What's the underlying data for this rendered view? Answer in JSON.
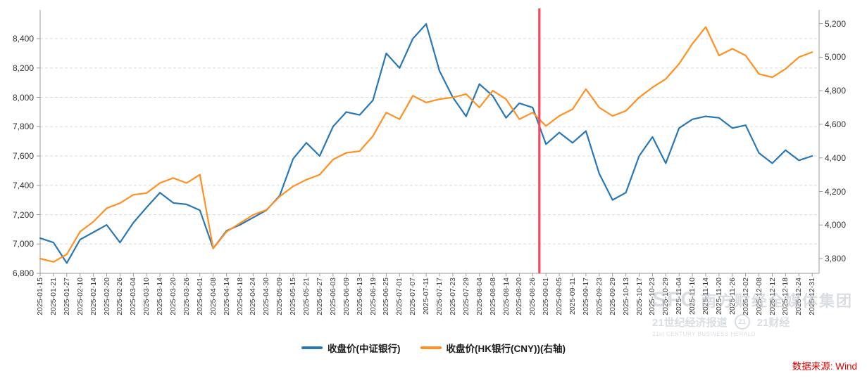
{
  "chart_data": {
    "type": "line",
    "title": "",
    "x_tick_labels": [
      "2025-01-15",
      "2025-01-21",
      "2025-01-27",
      "2025-02-10",
      "2025-02-14",
      "2025-02-20",
      "2025-02-26",
      "2025-03-04",
      "2025-03-10",
      "2025-03-14",
      "2025-03-20",
      "2025-03-26",
      "2025-04-01",
      "2025-04-08",
      "2025-04-14",
      "2025-04-18",
      "2025-04-24",
      "2025-04-30",
      "2025-05-09",
      "2025-05-15",
      "2025-05-21",
      "2025-05-27",
      "2025-06-03",
      "2025-06-09",
      "2025-06-13",
      "2025-06-19",
      "2025-06-25",
      "2025-07-01",
      "2025-07-07",
      "2025-07-11",
      "2025-07-17",
      "2025-07-23",
      "2025-07-29",
      "2025-08-04",
      "2025-08-08",
      "2025-08-14",
      "2025-08-20",
      "2025-08-26",
      "2025-09-01",
      "2025-09-05",
      "2025-09-11",
      "2025-09-17",
      "2025-09-23",
      "2025-09-29",
      "2025-10-13",
      "2025-10-17",
      "2025-10-23",
      "2025-10-29",
      "2025-11-04",
      "2025-11-10",
      "2025-11-14",
      "2025-11-20",
      "2025-11-26",
      "2025-12-02",
      "2025-12-08",
      "2025-12-12",
      "2025-12-18",
      "2025-12-24",
      "2025-12-31"
    ],
    "series": [
      {
        "name": "收盘价(中证银行)",
        "axis": "left",
        "color": "#2878b5",
        "values": [
          7040,
          7010,
          6870,
          7030,
          7080,
          7130,
          7010,
          7145,
          7250,
          7350,
          7280,
          7270,
          7230,
          6970,
          7090,
          7130,
          7180,
          7230,
          7330,
          7580,
          7690,
          7600,
          7800,
          7900,
          7880,
          7980,
          8300,
          8200,
          8400,
          8500,
          8180,
          8000,
          7870,
          8090,
          8010,
          7860,
          7960,
          7930,
          7680,
          7760,
          7690,
          7770,
          7480,
          7300,
          7350,
          7600,
          7730,
          7550,
          7790,
          7850,
          7870,
          7860,
          7790,
          7810,
          7620,
          7550,
          7640,
          7570,
          7600
        ]
      },
      {
        "name": "收盘价(HK银行(CNY))(右轴)",
        "axis": "right",
        "color": "#ff9021",
        "values": [
          3800,
          3780,
          3825,
          3960,
          4020,
          4100,
          4130,
          4180,
          4190,
          4250,
          4280,
          4250,
          4300,
          3860,
          3960,
          4010,
          4060,
          4090,
          4170,
          4230,
          4270,
          4300,
          4390,
          4430,
          4440,
          4530,
          4670,
          4630,
          4770,
          4730,
          4750,
          4760,
          4780,
          4700,
          4800,
          4750,
          4630,
          4670,
          4590,
          4650,
          4690,
          4810,
          4700,
          4650,
          4680,
          4760,
          4820,
          4870,
          4960,
          5080,
          5180,
          5010,
          5050,
          5010,
          4900,
          4880,
          4930,
          5000,
          5030
        ]
      }
    ],
    "left_axis": {
      "min": 6800,
      "max": 8400,
      "tick_interval": 200,
      "tick_values": [
        6800,
        7000,
        7200,
        7400,
        7600,
        7800,
        8000,
        8200,
        8400
      ],
      "tick_labels": [
        "6,800",
        "7,000",
        "7,200",
        "7,400",
        "7,600",
        "7,800",
        "8,000",
        "8,200",
        "8,400"
      ]
    },
    "right_axis": {
      "min": 3800,
      "max": 5200,
      "tick_interval": 200,
      "tick_values": [
        3800,
        4000,
        4200,
        4400,
        4600,
        4800,
        5000,
        5200
      ],
      "tick_labels": [
        "3,800",
        "4,000",
        "4,200",
        "4,400",
        "4,600",
        "4,800",
        "5,000",
        "5,200"
      ]
    },
    "marker_line": {
      "color": "#f8485e",
      "x_index": 37.5,
      "between": [
        "2025-08-26",
        "2025-09-01"
      ]
    },
    "grid": "horizontal-dashed",
    "legend_position": "bottom-center"
  },
  "legend": {
    "items": [
      {
        "label": "收盘价(中证银行)",
        "color": "#2878b5"
      },
      {
        "label": "收盘价(HK银行(CNY))(右轴)",
        "color": "#ff9021"
      }
    ]
  },
  "source_note": {
    "text": "数据来源: Wind",
    "color": "#e60000"
  },
  "watermark": {
    "brand_abbr": "SFC",
    "brand_cn": "南方财经全媒体集团",
    "sub_brand_1": "21世纪经济报道",
    "sub_brand_2": "21财经",
    "brand_en": "21st CENTURY BUSINESS HERALD"
  }
}
